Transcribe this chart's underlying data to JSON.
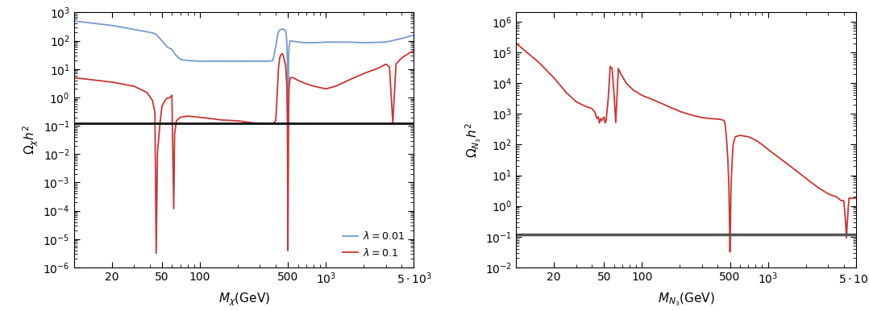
{
  "left_panel": {
    "xlabel": "$M_{\\chi}$(GeV)",
    "ylabel": "$\\Omega_{\\chi} h^2$",
    "xlim": [
      10,
      5000
    ],
    "ylim": [
      1e-06,
      1000.0
    ],
    "hline_y": 0.12,
    "hline_color": "#111111",
    "hline_lw": 2.0,
    "blue_color": "#7799CC",
    "red_color": "#CC3333",
    "legend_lambda1": "$\\lambda = 0.01$",
    "legend_lambda2": "$\\lambda = 0.1$"
  },
  "right_panel": {
    "xlabel": "$M_{N_3}$(GeV)",
    "ylabel": "$\\Omega_{N_3} h^2$",
    "xlim": [
      10,
      5000
    ],
    "ylim": [
      0.01,
      2000000.0
    ],
    "hline_y": 0.12,
    "hline_color": "#555555",
    "hline_lw": 2.5,
    "red_color": "#CC3333"
  },
  "fig_width": 10.78,
  "fig_height": 3.86,
  "dpi": 100
}
